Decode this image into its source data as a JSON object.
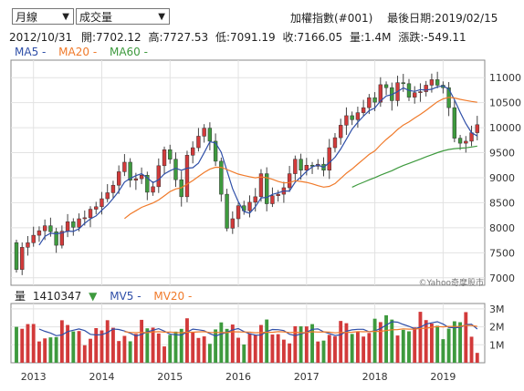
{
  "controls": {
    "period_select": "月線",
    "indicator_select": "成交量"
  },
  "header": {
    "index_name": "加權指數(#001)",
    "last_date_label": "最後日期:",
    "last_date": "2019/02/15"
  },
  "info": {
    "date": "2012/10/31",
    "open_label": "開:",
    "open": "7702.12",
    "high_label": "高:",
    "high": "7727.53",
    "low_label": "低:",
    "low": "7091.19",
    "close_label": "收:",
    "close": "7166.05",
    "vol_label": "量:",
    "vol": "1.4M",
    "chg_label": "漲跌:",
    "chg": "-549.11"
  },
  "price_legend": {
    "ma5": "MA5 -",
    "ma20": "MA20 -",
    "ma60": "MA60 -"
  },
  "watermark": "©Yahoo奇摩股市",
  "volume_legend": {
    "label": "量",
    "value": "1410347",
    "arrow": "▼",
    "mv5": "MV5 -",
    "mv20": "MV20 -"
  },
  "colors": {
    "up": "#d23a3a",
    "down": "#3e9a3e",
    "ma5": "#2f4fa8",
    "ma20": "#f07a2a",
    "ma60": "#3e9a3e",
    "grid": "#e2e2e2",
    "frame": "#888888"
  },
  "chart_data": [
    {
      "type": "candlestick",
      "title": "",
      "ylim": [
        6850,
        11350
      ],
      "yticks": [
        7000,
        7500,
        8000,
        8500,
        9000,
        9500,
        10000,
        10500,
        11000
      ],
      "x_ticks": [
        "2013",
        "2014",
        "2015",
        "2016",
        "2017",
        "2018",
        "2019"
      ],
      "close": [
        7166,
        7609,
        7700,
        7850,
        7940,
        8040,
        7920,
        7650,
        7930,
        8120,
        8010,
        8180,
        8200,
        8370,
        8420,
        8580,
        8700,
        8850,
        9120,
        9310,
        8950,
        8980,
        9050,
        8710,
        8820,
        9240,
        9560,
        9370,
        8960,
        8620,
        9450,
        9600,
        9830,
        9990,
        9730,
        9330,
        8670,
        7990,
        8180,
        8440,
        8340,
        8510,
        8620,
        9080,
        8480,
        8640,
        8670,
        8800,
        9080,
        9370,
        9150,
        9250,
        9230,
        9270,
        9150,
        9600,
        9800,
        10050,
        10240,
        10160,
        10300,
        10400,
        10600,
        10510,
        10860,
        10800,
        10540,
        10900,
        10880,
        10610,
        10700,
        10720,
        10850,
        10960,
        10850,
        10800,
        10400,
        9790,
        9690,
        9730,
        9900,
        10060
      ],
      "volume_range_note": "",
      "ma_series": [
        "MA5",
        "MA20",
        "MA60"
      ]
    },
    {
      "type": "bar",
      "title": "",
      "ylim": [
        0,
        3.3
      ],
      "yticks_label": [
        "1M",
        "2M",
        "3M"
      ],
      "units": "M"
    }
  ]
}
